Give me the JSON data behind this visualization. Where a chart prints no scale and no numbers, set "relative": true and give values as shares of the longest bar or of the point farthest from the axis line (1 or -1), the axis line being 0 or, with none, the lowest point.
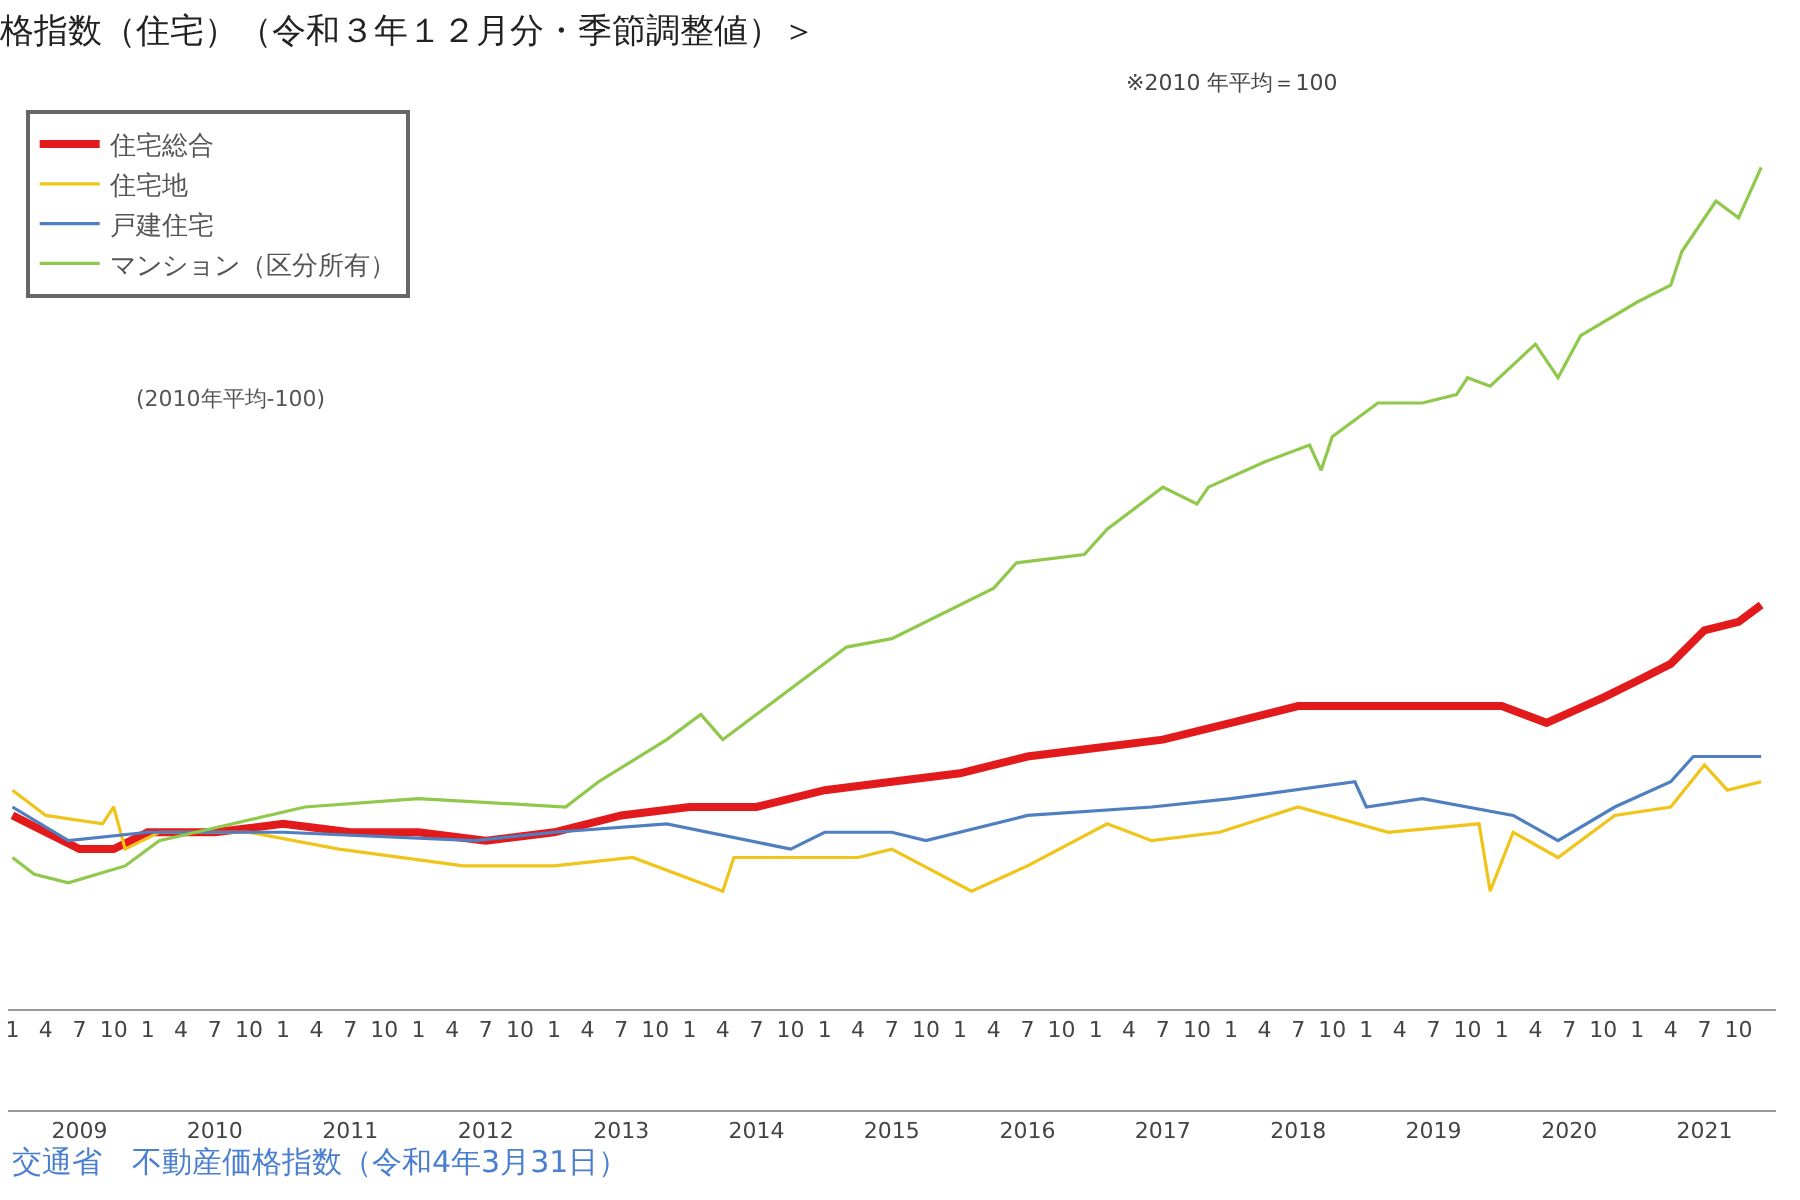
{
  "chart_data": {
    "type": "line",
    "title": "格指数（住宅）（令和３年１２月分・季節調整値）＞",
    "subtitle": "※2010 年平均＝100",
    "relative": true,
    "legend": "top left",
    "marker": "none",
    "line_style": "solid",
    "xlim": [
      "2008-12-20",
      "2022-01-10"
    ],
    "xticks": [
      {
        "value": "2009-01",
        "label": "1"
      },
      {
        "value": "2009-04",
        "label": "4"
      },
      {
        "value": "2009-07",
        "label": "7"
      },
      {
        "value": "2009-10",
        "label": "10"
      },
      {
        "value": "2010-01",
        "label": "1"
      },
      {
        "value": "2010-04",
        "label": "4"
      },
      {
        "value": "2010-07",
        "label": "7"
      },
      {
        "value": "2010-10",
        "label": "10"
      },
      {
        "value": "2011-01",
        "label": "1"
      },
      {
        "value": "2011-04",
        "label": "4"
      },
      {
        "value": "2011-07",
        "label": "7"
      },
      {
        "value": "2011-10",
        "label": "10"
      },
      {
        "value": "2012-01",
        "label": "1"
      },
      {
        "value": "2012-04",
        "label": "4"
      },
      {
        "value": "2012-07",
        "label": "7"
      },
      {
        "value": "2012-10",
        "label": "10"
      },
      {
        "value": "2013-01",
        "label": "1"
      },
      {
        "value": "2013-04",
        "label": "4"
      },
      {
        "value": "2013-07",
        "label": "7"
      },
      {
        "value": "2013-10",
        "label": "10"
      },
      {
        "value": "2014-01",
        "label": "1"
      },
      {
        "value": "2014-04",
        "label": "4"
      },
      {
        "value": "2014-07",
        "label": "7"
      },
      {
        "value": "2014-10",
        "label": "10"
      },
      {
        "value": "2015-01",
        "label": "1"
      },
      {
        "value": "2015-04",
        "label": "4"
      },
      {
        "value": "2015-07",
        "label": "7"
      },
      {
        "value": "2015-10",
        "label": "10"
      },
      {
        "value": "2016-01",
        "label": "1"
      },
      {
        "value": "2016-04",
        "label": "4"
      },
      {
        "value": "2016-07",
        "label": "7"
      },
      {
        "value": "2016-10",
        "label": "10"
      },
      {
        "value": "2017-01",
        "label": "1"
      },
      {
        "value": "2017-04",
        "label": "4"
      },
      {
        "value": "2017-07",
        "label": "7"
      },
      {
        "value": "2017-10",
        "label": "10"
      },
      {
        "value": "2018-01",
        "label": "1"
      },
      {
        "value": "2018-04",
        "label": "4"
      },
      {
        "value": "2018-07",
        "label": "7"
      },
      {
        "value": "2018-10",
        "label": "10"
      },
      {
        "value": "2019-01",
        "label": "1"
      },
      {
        "value": "2019-04",
        "label": "4"
      },
      {
        "value": "2019-07",
        "label": "7"
      },
      {
        "value": "2019-10",
        "label": "10"
      },
      {
        "value": "2020-01",
        "label": "1"
      },
      {
        "value": "2020-04",
        "label": "4"
      },
      {
        "value": "2020-07",
        "label": "7"
      },
      {
        "value": "2020-10",
        "label": "10"
      },
      {
        "value": "2021-01",
        "label": "1"
      },
      {
        "value": "2021-04",
        "label": "4"
      },
      {
        "value": "2021-07",
        "label": "7"
      },
      {
        "value": "2021-10",
        "label": "10"
      }
    ],
    "x2lim": [
      "2008-12-20",
      "2022-01-10"
    ],
    "x2ticks": [
      {
        "value": "2009-07",
        "label": "2009"
      },
      {
        "value": "2010-07",
        "label": "2010"
      },
      {
        "value": "2011-07",
        "label": "2011"
      },
      {
        "value": "2012-07",
        "label": "2012"
      },
      {
        "value": "2013-07",
        "label": "2013"
      },
      {
        "value": "2014-07",
        "label": "2014"
      },
      {
        "value": "2015-07",
        "label": "2015"
      },
      {
        "value": "2016-07",
        "label": "2016"
      },
      {
        "value": "2017-07",
        "label": "2017"
      },
      {
        "value": "2018-07",
        "label": "2018"
      },
      {
        "value": "2019-07",
        "label": "2019"
      },
      {
        "value": "2020-07",
        "label": "2020"
      },
      {
        "value": "2021-07",
        "label": "2021"
      }
    ],
    "annotations": [
      "(2010年平均-100)",
      "交通省　不動産価格指数（令和4年3月31日）"
    ],
    "series": [
      {
        "name": "住宅総合",
        "color": "#e31a1c",
        "x": [
          "2009-01",
          "2009-04",
          "2009-07",
          "2009-10",
          "2010-01",
          "2010-07",
          "2011-01",
          "2011-07",
          "2012-01",
          "2012-07",
          "2013-01",
          "2013-07",
          "2014-01",
          "2014-07",
          "2015-01",
          "2015-07",
          "2016-01",
          "2016-07",
          "2017-01",
          "2017-07",
          "2018-01",
          "2018-07",
          "2019-01",
          "2019-07",
          "2020-01",
          "2020-05",
          "2020-10",
          "2021-01",
          "2021-04",
          "2021-07",
          "2021-10",
          "2021-12"
        ],
        "values": [
          0.23,
          0.21,
          0.19,
          0.19,
          0.21,
          0.21,
          0.22,
          0.21,
          0.21,
          0.2,
          0.21,
          0.23,
          0.24,
          0.24,
          0.26,
          0.27,
          0.28,
          0.3,
          0.31,
          0.32,
          0.34,
          0.36,
          0.36,
          0.36,
          0.36,
          0.34,
          0.37,
          0.39,
          0.41,
          0.45,
          0.46,
          0.48
        ]
      },
      {
        "name": "住宅地",
        "color": "#f0c419",
        "x": [
          "2009-01",
          "2009-04",
          "2009-09",
          "2009-10",
          "2009-11",
          "2010-02",
          "2010-10",
          "2011-06",
          "2012-05",
          "2013-01",
          "2013-08",
          "2014-04",
          "2014-05",
          "2015-04",
          "2015-07",
          "2016-02",
          "2016-07",
          "2017-02",
          "2017-06",
          "2017-12",
          "2018-07",
          "2019-03",
          "2019-11",
          "2019-12",
          "2020-02",
          "2020-06",
          "2020-11",
          "2021-04",
          "2021-07",
          "2021-09",
          "2021-12"
        ],
        "values": [
          0.26,
          0.23,
          0.22,
          0.24,
          0.19,
          0.21,
          0.21,
          0.19,
          0.17,
          0.17,
          0.18,
          0.14,
          0.18,
          0.18,
          0.19,
          0.14,
          0.17,
          0.22,
          0.2,
          0.21,
          0.24,
          0.21,
          0.22,
          0.14,
          0.21,
          0.18,
          0.23,
          0.24,
          0.29,
          0.26,
          0.27
        ]
      },
      {
        "name": "戸建住宅",
        "color": "#4f7fc0",
        "x": [
          "2009-01",
          "2009-06",
          "2010-01",
          "2011-01",
          "2012-06",
          "2013-01",
          "2013-11",
          "2014-10",
          "2015-01",
          "2015-07",
          "2015-10",
          "2016-07",
          "2017-06",
          "2018-01",
          "2018-12",
          "2019-01",
          "2019-06",
          "2020-02",
          "2020-06",
          "2020-11",
          "2021-04",
          "2021-06",
          "2021-12"
        ],
        "values": [
          0.24,
          0.2,
          0.21,
          0.21,
          0.2,
          0.21,
          0.22,
          0.19,
          0.21,
          0.21,
          0.2,
          0.23,
          0.24,
          0.25,
          0.27,
          0.24,
          0.25,
          0.23,
          0.2,
          0.24,
          0.27,
          0.3,
          0.3
        ]
      },
      {
        "name": "マンション（区分所有）",
        "color": "#8fc84a",
        "x": [
          "2009-01",
          "2009-03",
          "2009-06",
          "2009-11",
          "2010-02",
          "2011-03",
          "2012-01",
          "2013-02",
          "2013-05",
          "2013-11",
          "2014-02",
          "2014-04",
          "2015-03",
          "2015-07",
          "2016-04",
          "2016-06",
          "2016-12",
          "2017-02",
          "2017-07",
          "2017-10",
          "2017-11",
          "2018-04",
          "2018-08",
          "2018-09",
          "2018-10",
          "2019-02",
          "2019-06",
          "2019-09",
          "2019-10",
          "2019-12",
          "2020-04",
          "2020-06",
          "2020-08",
          "2021-01",
          "2021-04",
          "2021-05",
          "2021-08",
          "2021-10",
          "2021-12"
        ],
        "values": [
          0.18,
          0.16,
          0.15,
          0.17,
          0.2,
          0.24,
          0.25,
          0.24,
          0.27,
          0.32,
          0.35,
          0.32,
          0.43,
          0.44,
          0.5,
          0.53,
          0.54,
          0.57,
          0.62,
          0.6,
          0.62,
          0.65,
          0.67,
          0.64,
          0.68,
          0.72,
          0.72,
          0.73,
          0.75,
          0.74,
          0.79,
          0.75,
          0.8,
          0.84,
          0.86,
          0.9,
          0.96,
          0.94,
          1
        ]
      }
    ]
  }
}
